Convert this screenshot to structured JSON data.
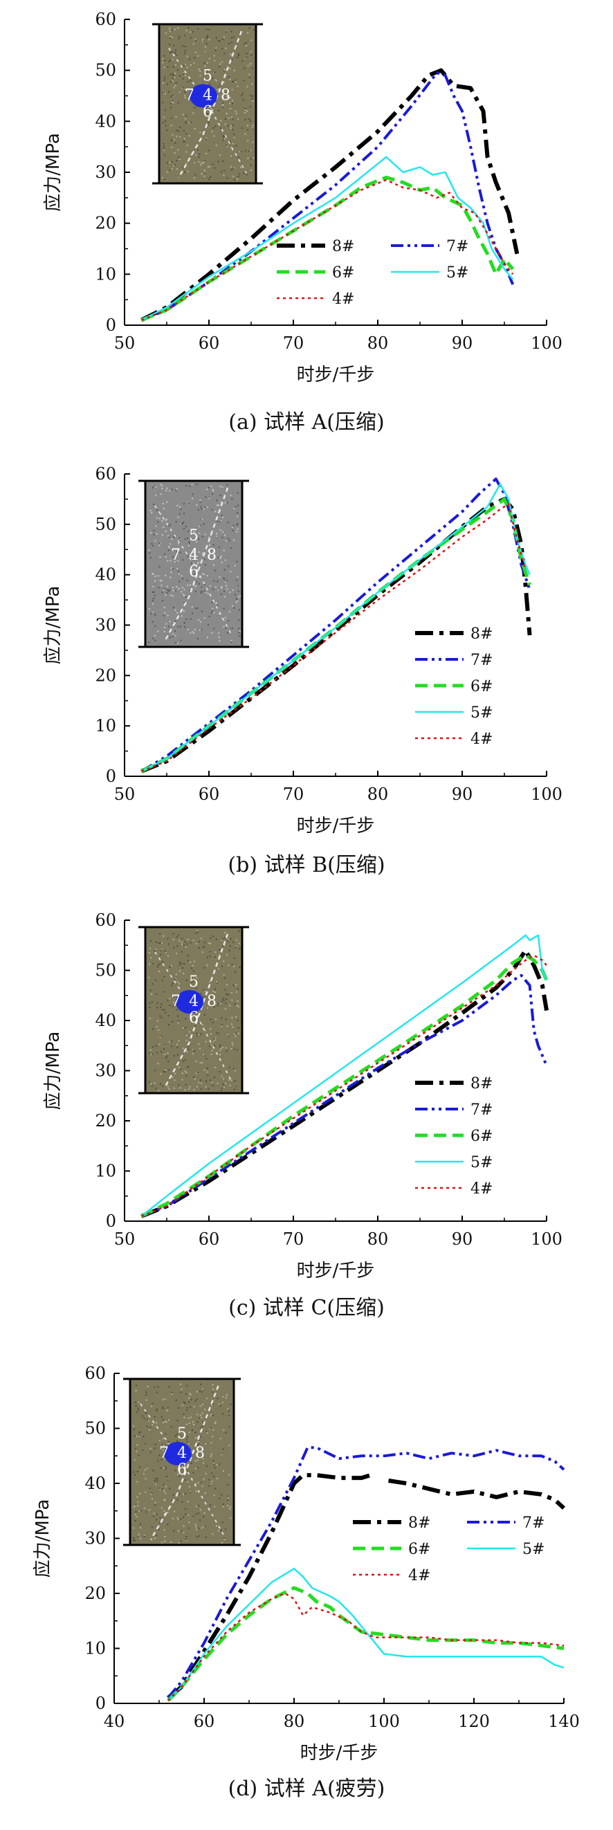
{
  "figure": {
    "colors": {
      "s8": "#000000",
      "s7": "#1a1ad6",
      "s6": "#22dd22",
      "s5": "#22e6ee",
      "s4": "#dd1111"
    },
    "series_labels": [
      "8#",
      "7#",
      "6#",
      "5#",
      "4#"
    ],
    "inset_point_labels": [
      "5",
      "7",
      "4",
      "8",
      "6"
    ]
  },
  "chart_data": [
    {
      "type": "line",
      "caption": "(a)  试样 A(压缩)",
      "xlabel": "时步/千步",
      "ylabel": "应力/MPa",
      "xlim": [
        50,
        100
      ],
      "ylim": [
        0,
        60
      ],
      "xticks": [
        50,
        60,
        70,
        80,
        90,
        100
      ],
      "yticks": [
        0,
        10,
        20,
        30,
        40,
        50,
        60
      ],
      "legend_layout": "two-column",
      "inset": "specimen-A",
      "series": [
        {
          "name": "8#",
          "x": [
            52,
            55,
            60,
            65,
            70,
            75,
            80,
            84,
            86,
            87.5,
            89,
            91,
            92.5,
            93,
            94,
            95.5,
            96.5
          ],
          "y": [
            1,
            3.5,
            10,
            17,
            24.5,
            31,
            38,
            45,
            49,
            50,
            47,
            46.5,
            42,
            33,
            28,
            22,
            14
          ]
        },
        {
          "name": "7#",
          "x": [
            52,
            55,
            60,
            65,
            70,
            75,
            80,
            84,
            87,
            88,
            89,
            90,
            91,
            92,
            93,
            94,
            95,
            96
          ],
          "y": [
            1,
            3,
            8.5,
            14.5,
            21,
            27.5,
            35,
            43,
            49.5,
            49,
            45,
            42,
            35,
            27,
            20,
            15,
            12,
            8
          ]
        },
        {
          "name": "6#",
          "x": [
            52,
            55,
            60,
            65,
            70,
            75,
            78,
            81,
            83,
            85,
            86.5,
            88,
            90,
            91,
            92,
            93,
            94,
            95,
            96
          ],
          "y": [
            1,
            3,
            8.5,
            13.5,
            18.5,
            23.5,
            27,
            29,
            28,
            26.5,
            27,
            25,
            23.5,
            20.5,
            17,
            14,
            10,
            13,
            11
          ]
        },
        {
          "name": "5#",
          "x": [
            52,
            55,
            60,
            65,
            70,
            75,
            78,
            81,
            83,
            85,
            86.5,
            88,
            89.5,
            91,
            92.5,
            93.5,
            95,
            96
          ],
          "y": [
            1,
            3.5,
            9.5,
            14.5,
            20,
            25,
            29,
            33,
            30,
            31,
            29.5,
            30,
            25,
            23,
            20,
            15,
            11,
            9
          ]
        },
        {
          "name": "4#",
          "x": [
            52,
            55,
            60,
            65,
            70,
            75,
            78,
            81,
            83,
            85,
            87,
            88.5,
            90,
            91.5,
            93,
            94,
            95,
            96
          ],
          "y": [
            1,
            3,
            8.5,
            13.5,
            18.5,
            23.5,
            26.5,
            28.5,
            27,
            26.5,
            25,
            26,
            23,
            22,
            18,
            15,
            12,
            10
          ]
        }
      ]
    },
    {
      "type": "line",
      "caption": "(b)  试样 B(压缩)",
      "xlabel": "时步/千步",
      "ylabel": "应力/MPa",
      "xlim": [
        50,
        100
      ],
      "ylim": [
        0,
        60
      ],
      "xticks": [
        50,
        60,
        70,
        80,
        90,
        100
      ],
      "yticks": [
        0,
        10,
        20,
        30,
        40,
        50,
        60
      ],
      "legend_layout": "one-column",
      "inset": "specimen-B",
      "series": [
        {
          "name": "8#",
          "x": [
            52,
            55,
            60,
            65,
            70,
            75,
            80,
            85,
            90,
            93,
            95,
            96,
            97,
            97.5,
            98
          ],
          "y": [
            1,
            3,
            9,
            15.5,
            22,
            29,
            36,
            42.5,
            49.5,
            53.5,
            55,
            53,
            46,
            38,
            28
          ]
        },
        {
          "name": "7#",
          "x": [
            52,
            55,
            60,
            65,
            70,
            75,
            80,
            85,
            90,
            92,
            94,
            95,
            96,
            97,
            98
          ],
          "y": [
            1,
            4,
            10.5,
            17,
            24,
            31,
            38.5,
            45.5,
            52.5,
            56,
            59,
            56,
            50,
            42,
            37
          ]
        },
        {
          "name": "6#",
          "x": [
            52,
            55,
            60,
            65,
            70,
            75,
            80,
            85,
            90,
            93,
            95,
            96,
            97,
            98
          ],
          "y": [
            1,
            3.5,
            10,
            16.5,
            23,
            29.5,
            36.5,
            43,
            49,
            52.5,
            55,
            51,
            43,
            38
          ]
        },
        {
          "name": "5#",
          "x": [
            52,
            55,
            60,
            65,
            70,
            75,
            80,
            85,
            90,
            93,
            94.5,
            95.5,
            96.5,
            97.5,
            98
          ],
          "y": [
            1,
            3.5,
            10,
            16.5,
            23,
            29.5,
            36.5,
            43,
            49.5,
            53.5,
            58,
            55,
            47,
            42,
            40
          ]
        },
        {
          "name": "4#",
          "x": [
            52,
            55,
            60,
            65,
            70,
            75,
            80,
            85,
            90,
            93,
            94.5,
            95.5,
            96.5,
            97.5
          ],
          "y": [
            1,
            3,
            9.5,
            15.5,
            22,
            28.5,
            35,
            41,
            47.5,
            51,
            53,
            54,
            47,
            41
          ]
        }
      ]
    },
    {
      "type": "line",
      "caption": "(c)  试样 C(压缩)",
      "xlabel": "时步/千步",
      "ylabel": "应力/MPa",
      "xlim": [
        50,
        100
      ],
      "ylim": [
        0,
        60
      ],
      "xticks": [
        50,
        60,
        70,
        80,
        90,
        100
      ],
      "yticks": [
        0,
        10,
        20,
        30,
        40,
        50,
        60
      ],
      "legend_layout": "one-column",
      "inset": "specimen-C",
      "series": [
        {
          "name": "8#",
          "x": [
            52,
            55,
            60,
            65,
            70,
            75,
            80,
            85,
            90,
            94,
            96,
            97.5,
            98.5,
            99.5,
            100
          ],
          "y": [
            1,
            3,
            8,
            13.5,
            19,
            24.5,
            30,
            35.5,
            41.5,
            46.5,
            50,
            54,
            51,
            47,
            42
          ]
        },
        {
          "name": "7#",
          "x": [
            52,
            55,
            60,
            65,
            70,
            75,
            80,
            85,
            90,
            94,
            96,
            97,
            98,
            98.5,
            99,
            99.5,
            100
          ],
          "y": [
            1,
            3,
            8.5,
            14,
            19.5,
            25,
            30.5,
            35.5,
            40,
            45,
            48,
            49,
            47,
            38,
            35,
            33,
            31
          ]
        },
        {
          "name": "6#",
          "x": [
            52,
            55,
            60,
            65,
            70,
            75,
            80,
            85,
            90,
            94,
            96,
            97.5,
            98.5,
            99.5,
            100
          ],
          "y": [
            1,
            3.5,
            9,
            15,
            21,
            26.5,
            32,
            37.5,
            43,
            48,
            51.5,
            53,
            52,
            50,
            48
          ]
        },
        {
          "name": "5#",
          "x": [
            52,
            55,
            60,
            65,
            70,
            75,
            80,
            85,
            90,
            94,
            96,
            97.5,
            98,
            99,
            99.5,
            100
          ],
          "y": [
            1,
            5,
            11.5,
            17.5,
            23.5,
            29.5,
            35.5,
            41.5,
            47.5,
            52.5,
            55,
            57,
            56,
            57,
            50,
            48
          ]
        },
        {
          "name": "4#",
          "x": [
            52,
            55,
            60,
            65,
            70,
            75,
            80,
            85,
            90,
            94,
            96,
            97.5,
            98.5,
            99.5,
            100
          ],
          "y": [
            1,
            3,
            9,
            15,
            20.5,
            26,
            31.5,
            37,
            42.5,
            47,
            50,
            52,
            53,
            52,
            51
          ]
        }
      ]
    },
    {
      "type": "line",
      "caption": "(d)  试样 A(疲劳)",
      "xlabel": "时步/千步",
      "ylabel": "应力/MPa",
      "xlim": [
        40,
        140
      ],
      "ylim": [
        0,
        60
      ],
      "xticks": [
        40,
        60,
        80,
        100,
        120,
        140
      ],
      "yticks": [
        0,
        10,
        20,
        30,
        40,
        50,
        60
      ],
      "legend_layout": "two-column",
      "inset": "specimen-A",
      "series": [
        {
          "name": "8#",
          "x": [
            52,
            55,
            60,
            65,
            70,
            75,
            80,
            82,
            85,
            90,
            95,
            97,
            98,
            101,
            105,
            110,
            115,
            120,
            125,
            130,
            135,
            138,
            140
          ],
          "y": [
            1,
            3,
            9.5,
            16,
            23,
            31,
            40,
            41.5,
            41.5,
            41,
            41,
            41.5,
            null,
            40.5,
            40,
            39,
            38,
            38.5,
            37.5,
            38.5,
            38,
            37,
            35.5
          ]
        },
        {
          "name": "7#",
          "x": [
            52,
            55,
            60,
            65,
            70,
            75,
            80,
            83,
            85,
            90,
            95,
            100,
            105,
            110,
            115,
            120,
            125,
            130,
            135,
            138,
            140
          ],
          "y": [
            1,
            4,
            11,
            19,
            26,
            33,
            41,
            46.5,
            46.5,
            44.5,
            45,
            45,
            45.5,
            44.5,
            45.5,
            45,
            46,
            45,
            45,
            44,
            42.5
          ]
        },
        {
          "name": "6#",
          "x": [
            52,
            55,
            60,
            65,
            70,
            75,
            80,
            83,
            85,
            88,
            90,
            95,
            100,
            105,
            110,
            115,
            120,
            125,
            130,
            135,
            140
          ],
          "y": [
            0.5,
            3,
            8,
            12.5,
            16,
            19,
            21,
            20,
            18.5,
            17.5,
            16,
            13,
            12.5,
            12,
            11.5,
            11.5,
            11.5,
            11,
            11,
            10.5,
            10
          ]
        },
        {
          "name": "5#",
          "x": [
            52,
            55,
            60,
            65,
            70,
            75,
            80,
            82,
            84,
            88,
            90,
            93,
            95,
            98,
            100,
            105,
            110,
            115,
            120,
            125,
            130,
            135,
            138,
            140
          ],
          "y": [
            0.5,
            3,
            9,
            14,
            18,
            22,
            24.5,
            23,
            21,
            19.5,
            18.5,
            16,
            14,
            11,
            9,
            8.5,
            8.5,
            8.5,
            8.5,
            8.5,
            8.5,
            8.5,
            7,
            6.5
          ]
        },
        {
          "name": "4#",
          "x": [
            52,
            55,
            60,
            65,
            70,
            75,
            78,
            80,
            82,
            84,
            88,
            92,
            95,
            98,
            100,
            105,
            110,
            115,
            120,
            125,
            130,
            135,
            140
          ],
          "y": [
            0.5,
            3,
            8.5,
            13,
            16.5,
            19,
            20,
            19,
            16,
            17.5,
            16.5,
            15,
            13,
            12,
            12,
            12,
            12,
            11.5,
            11.5,
            11.5,
            11,
            11,
            10.5
          ]
        }
      ]
    }
  ]
}
